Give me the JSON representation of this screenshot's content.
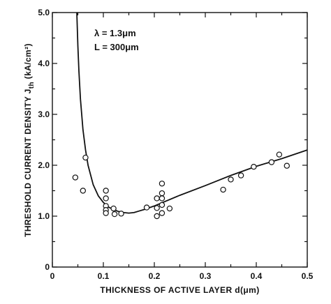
{
  "chart_data": {
    "type": "scatter",
    "xlabel": "THICKNESS OF ACTIVE LAYER d(μm)",
    "ylabel": "THRESHOLD CURRENT DENSITY J",
    "ylabel_sub": "th",
    "ylabel_units": " (kA/cm²)",
    "xlim": [
      0,
      0.5
    ],
    "ylim": [
      0,
      5.0
    ],
    "x_ticks": [
      "0",
      "0.1",
      "0.2",
      "0.3",
      "0.4",
      "0.5"
    ],
    "y_ticks": [
      "0",
      "1.0",
      "2.0",
      "3.0",
      "4.0",
      "5.0"
    ],
    "grid": false,
    "annotations": [
      "λ = 1.3μm",
      "L = 300μm"
    ],
    "series": [
      {
        "kind": "points",
        "marker": "open-circle",
        "points": [
          [
            0.045,
            1.76
          ],
          [
            0.06,
            1.5
          ],
          [
            0.065,
            2.15
          ],
          [
            0.105,
            1.5
          ],
          [
            0.105,
            1.35
          ],
          [
            0.105,
            1.2
          ],
          [
            0.105,
            1.12
          ],
          [
            0.105,
            1.06
          ],
          [
            0.12,
            1.15
          ],
          [
            0.122,
            1.04
          ],
          [
            0.135,
            1.05
          ],
          [
            0.185,
            1.17
          ],
          [
            0.205,
            1.35
          ],
          [
            0.205,
            1.16
          ],
          [
            0.205,
            1.0
          ],
          [
            0.215,
            1.64
          ],
          [
            0.215,
            1.45
          ],
          [
            0.215,
            1.35
          ],
          [
            0.215,
            1.22
          ],
          [
            0.215,
            1.06
          ],
          [
            0.23,
            1.15
          ],
          [
            0.335,
            1.52
          ],
          [
            0.35,
            1.72
          ],
          [
            0.37,
            1.8
          ],
          [
            0.395,
            1.97
          ],
          [
            0.43,
            2.06
          ],
          [
            0.445,
            2.21
          ],
          [
            0.46,
            1.99
          ]
        ]
      },
      {
        "kind": "line",
        "points": [
          [
            0.048,
            5.0
          ],
          [
            0.05,
            4.35
          ],
          [
            0.052,
            3.85
          ],
          [
            0.055,
            3.3
          ],
          [
            0.06,
            2.7
          ],
          [
            0.065,
            2.3
          ],
          [
            0.07,
            2.0
          ],
          [
            0.08,
            1.62
          ],
          [
            0.09,
            1.4
          ],
          [
            0.1,
            1.27
          ],
          [
            0.11,
            1.18
          ],
          [
            0.12,
            1.13
          ],
          [
            0.13,
            1.09
          ],
          [
            0.14,
            1.07
          ],
          [
            0.15,
            1.06
          ],
          [
            0.16,
            1.07
          ],
          [
            0.17,
            1.1
          ],
          [
            0.18,
            1.13
          ],
          [
            0.2,
            1.2
          ],
          [
            0.25,
            1.41
          ],
          [
            0.3,
            1.6
          ],
          [
            0.35,
            1.8
          ],
          [
            0.4,
            1.98
          ],
          [
            0.45,
            2.13
          ],
          [
            0.5,
            2.3
          ]
        ]
      }
    ]
  }
}
